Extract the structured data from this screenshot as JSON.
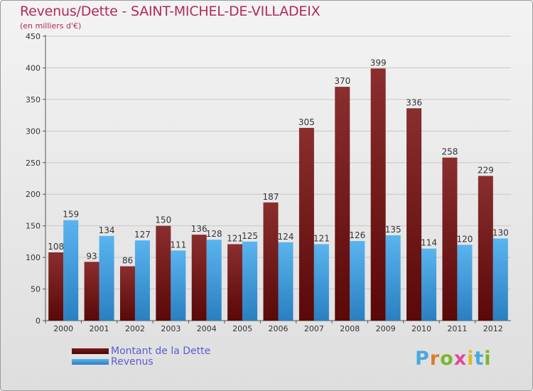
{
  "header": {
    "title": "Revenus/Dette - SAINT-MICHEL-DE-VILLADEIX",
    "subtitle": "(en milliers d'€)"
  },
  "chart_data": {
    "type": "bar",
    "title": "Revenus/Dette - SAINT-MICHEL-DE-VILLADEIX",
    "ylabel": "(en milliers d'€)",
    "xlabel": "",
    "categories": [
      "2000",
      "2001",
      "2002",
      "2003",
      "2004",
      "2005",
      "2006",
      "2007",
      "2008",
      "2009",
      "2010",
      "2011",
      "2012"
    ],
    "series": [
      {
        "name": "Montant de la Dette",
        "color": "#7a1a1a",
        "values": [
          108,
          93,
          86,
          150,
          136,
          121,
          187,
          305,
          370,
          399,
          336,
          258,
          229
        ]
      },
      {
        "name": "Revenus",
        "color": "#3a9ce0",
        "values": [
          159,
          134,
          127,
          111,
          128,
          125,
          124,
          121,
          126,
          135,
          114,
          120,
          130
        ]
      }
    ],
    "ylim": [
      0,
      450
    ],
    "yticks": [
      0,
      50,
      100,
      150,
      200,
      250,
      300,
      350,
      400,
      450
    ],
    "grid": true,
    "legend": "bottom-left"
  },
  "legend": {
    "items": [
      {
        "label": "Montant de la Dette",
        "color": "#5a0a0a"
      },
      {
        "label": "Revenus",
        "color": "#3a9ce0"
      }
    ]
  },
  "logo": {
    "letters": [
      "P",
      "r",
      "o",
      "x",
      "i",
      "t",
      "i"
    ],
    "colors": [
      "#4aa8e0",
      "#e07a2a",
      "#7ab82a",
      "#e04a9a",
      "#e0b82a",
      "#4aa8e0",
      "#7ab82a"
    ]
  }
}
